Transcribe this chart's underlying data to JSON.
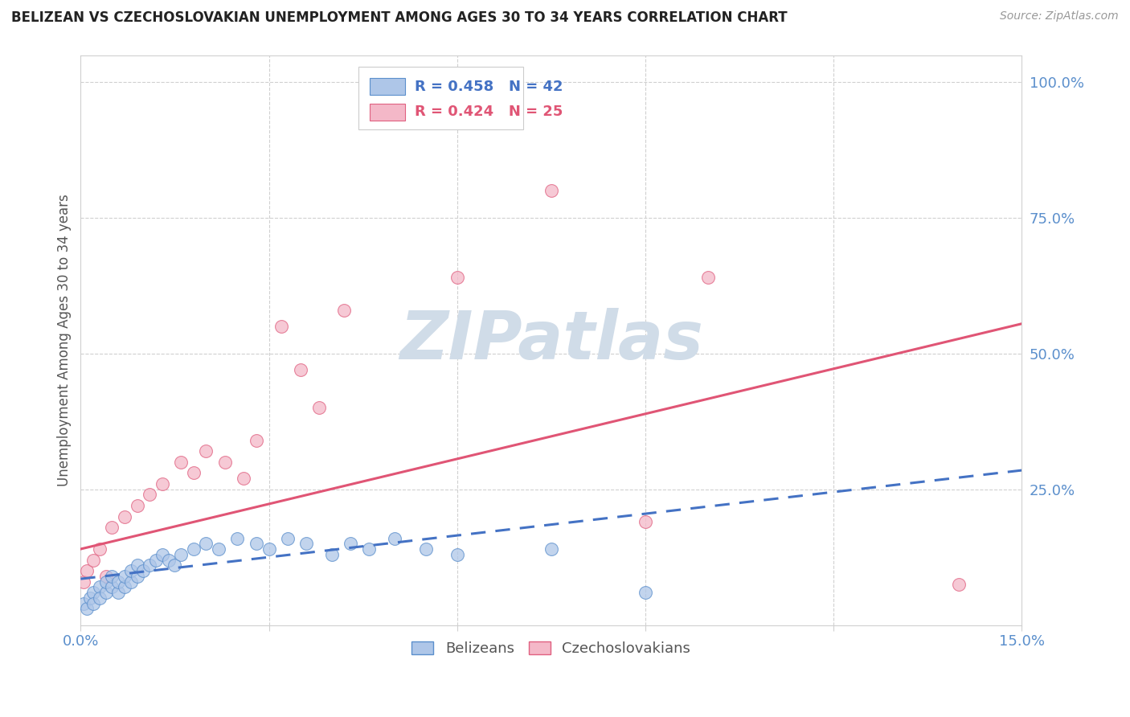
{
  "title": "BELIZEAN VS CZECHOSLOVAKIAN UNEMPLOYMENT AMONG AGES 30 TO 34 YEARS CORRELATION CHART",
  "source": "Source: ZipAtlas.com",
  "ylabel": "Unemployment Among Ages 30 to 34 years",
  "xlim": [
    0.0,
    0.15
  ],
  "ylim": [
    0.0,
    1.05
  ],
  "xtick_positions": [
    0.0,
    0.03,
    0.06,
    0.09,
    0.12,
    0.15
  ],
  "xticklabels": [
    "0.0%",
    "",
    "",
    "",
    "",
    "15.0%"
  ],
  "ytick_positions": [
    0.0,
    0.25,
    0.5,
    0.75,
    1.0
  ],
  "yticklabels_right": [
    "",
    "25.0%",
    "50.0%",
    "75.0%",
    "100.0%"
  ],
  "belizean_R": 0.458,
  "belizean_N": 42,
  "czechoslovakian_R": 0.424,
  "czechoslovakian_N": 25,
  "belizean_scatter_color": "#aec6e8",
  "belizean_edge_color": "#5b8fcc",
  "belizean_line_color": "#4472c4",
  "czechoslovakian_scatter_color": "#f4b8c8",
  "czechoslovakian_edge_color": "#e06080",
  "czechoslovakian_line_color": "#e05575",
  "grid_color": "#d0d0d0",
  "title_color": "#222222",
  "axis_label_color": "#555555",
  "tick_color": "#5b8fcc",
  "source_color": "#999999",
  "watermark_color": "#d0dce8",
  "belizean_x": [
    0.0005,
    0.001,
    0.0015,
    0.002,
    0.002,
    0.003,
    0.003,
    0.004,
    0.004,
    0.005,
    0.005,
    0.006,
    0.006,
    0.007,
    0.007,
    0.008,
    0.008,
    0.009,
    0.009,
    0.01,
    0.011,
    0.012,
    0.013,
    0.014,
    0.015,
    0.016,
    0.018,
    0.02,
    0.022,
    0.025,
    0.028,
    0.03,
    0.033,
    0.036,
    0.04,
    0.043,
    0.046,
    0.05,
    0.055,
    0.06,
    0.075,
    0.09
  ],
  "belizean_y": [
    0.04,
    0.03,
    0.05,
    0.06,
    0.04,
    0.07,
    0.05,
    0.06,
    0.08,
    0.07,
    0.09,
    0.06,
    0.08,
    0.07,
    0.09,
    0.08,
    0.1,
    0.09,
    0.11,
    0.1,
    0.11,
    0.12,
    0.13,
    0.12,
    0.11,
    0.13,
    0.14,
    0.15,
    0.14,
    0.16,
    0.15,
    0.14,
    0.16,
    0.15,
    0.13,
    0.15,
    0.14,
    0.16,
    0.14,
    0.13,
    0.14,
    0.06
  ],
  "czechoslovakian_x": [
    0.0005,
    0.001,
    0.002,
    0.003,
    0.004,
    0.005,
    0.007,
    0.009,
    0.011,
    0.013,
    0.016,
    0.018,
    0.02,
    0.023,
    0.026,
    0.028,
    0.032,
    0.035,
    0.038,
    0.042,
    0.06,
    0.075,
    0.09,
    0.1,
    0.14
  ],
  "czechoslovakian_y": [
    0.08,
    0.1,
    0.12,
    0.14,
    0.09,
    0.18,
    0.2,
    0.22,
    0.24,
    0.26,
    0.3,
    0.28,
    0.32,
    0.3,
    0.27,
    0.34,
    0.55,
    0.47,
    0.4,
    0.58,
    0.64,
    0.8,
    0.19,
    0.64,
    0.075
  ],
  "bel_trend_x": [
    0.0,
    0.15
  ],
  "bel_trend_y": [
    0.085,
    0.285
  ],
  "czech_trend_x": [
    0.0,
    0.15
  ],
  "czech_trend_y": [
    0.14,
    0.555
  ]
}
